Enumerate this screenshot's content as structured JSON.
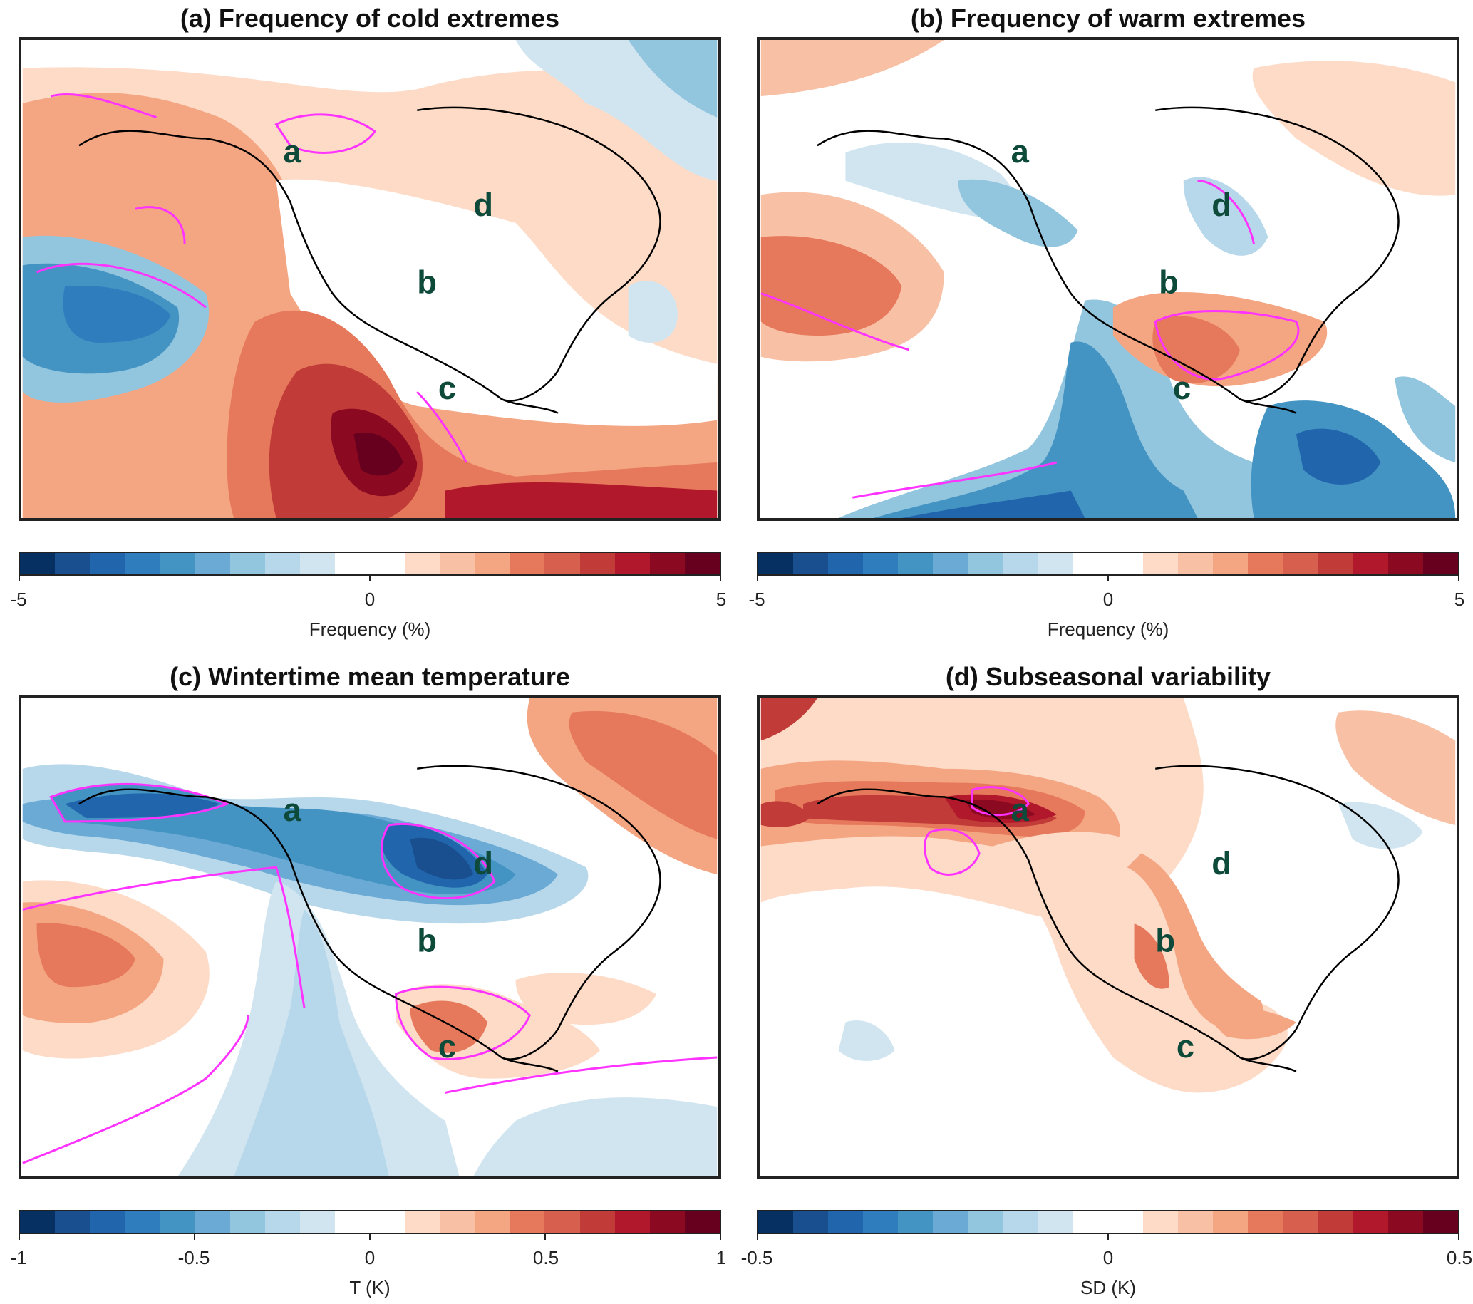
{
  "panels": [
    {
      "id": "a",
      "title": "(a) Frequency of cold extremes",
      "colorbar": {
        "ticks": [
          "-5",
          "0",
          "5"
        ],
        "label": "Frequency (%)"
      },
      "regions": [
        "a",
        "b",
        "c",
        "d"
      ]
    },
    {
      "id": "b",
      "title": "(b) Frequency of warm extremes",
      "colorbar": {
        "ticks": [
          "-5",
          "0",
          "5"
        ],
        "label": "Frequency (%)"
      },
      "regions": [
        "a",
        "b",
        "c",
        "d"
      ]
    },
    {
      "id": "c",
      "title": "(c) Wintertime mean temperature",
      "colorbar": {
        "ticks": [
          "-1",
          "-0.5",
          "0",
          "0.5",
          "1"
        ],
        "label": "T (K)"
      },
      "regions": [
        "a",
        "b",
        "c",
        "d"
      ]
    },
    {
      "id": "d",
      "title": "(d) Subseasonal variability",
      "colorbar": {
        "ticks": [
          "-0.5",
          "0",
          "0.5"
        ],
        "label": "SD (K)"
      },
      "regions": [
        "a",
        "b",
        "c",
        "d"
      ]
    }
  ],
  "palette": [
    "#053061",
    "#1a4f8f",
    "#2166ac",
    "#2f7dbd",
    "#4393c3",
    "#6aaad4",
    "#92c5de",
    "#b7d7ea",
    "#d1e5f0",
    "#ffffff",
    "#ffffff",
    "#fddbc7",
    "#f8c1a5",
    "#f4a582",
    "#e6795c",
    "#d6604d",
    "#c13c38",
    "#b2182b",
    "#8b0a22",
    "#67001f"
  ],
  "colors": {
    "coastline": "#000000",
    "significance_contour": "#ff33ff",
    "region_label": "#0e4a3a"
  }
}
